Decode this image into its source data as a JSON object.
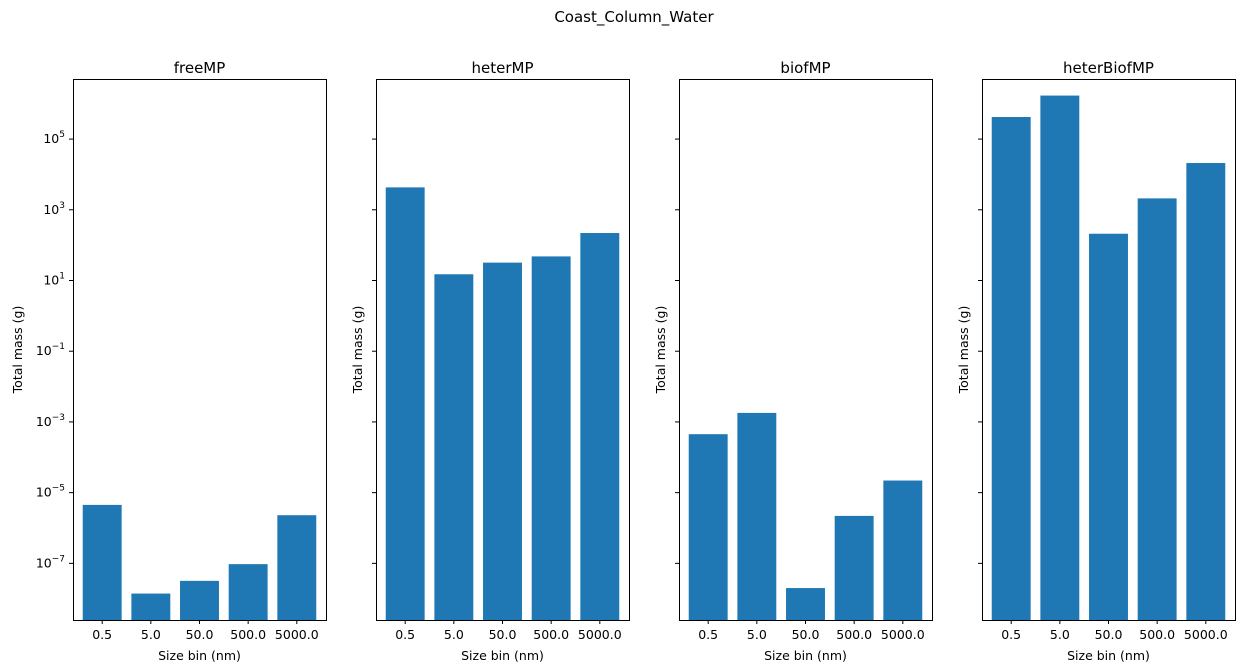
{
  "chart_data": {
    "suptitle": "Coast_Column_Water",
    "type": "bar",
    "yscale": "log",
    "ylim": [
      2.5e-09,
      5000000.0
    ],
    "sharey": true,
    "bar_color": "#1f77b4",
    "xlabel": "Size bin (nm)",
    "ylabel": "Total mass (g)",
    "categories": [
      "0.5",
      "5.0",
      "50.0",
      "500.0",
      "5000.0"
    ],
    "y_ticks": [
      {
        "value": 100000.0,
        "mantissa": "10",
        "exp": "5"
      },
      {
        "value": 1000.0,
        "mantissa": "10",
        "exp": "3"
      },
      {
        "value": 10.0,
        "mantissa": "10",
        "exp": "1"
      },
      {
        "value": 0.1,
        "mantissa": "10",
        "exp": "−1"
      },
      {
        "value": 0.001,
        "mantissa": "10",
        "exp": "−3"
      },
      {
        "value": 1e-05,
        "mantissa": "10",
        "exp": "−5"
      },
      {
        "value": 1e-07,
        "mantissa": "10",
        "exp": "−7"
      }
    ],
    "panels": [
      {
        "title": "freeMP",
        "values": [
          4.5e-06,
          1.4e-08,
          3.2e-08,
          9.5e-08,
          2.3e-06
        ]
      },
      {
        "title": "heterMP",
        "values": [
          4300,
          15,
          32,
          48,
          220
        ]
      },
      {
        "title": "biofMP",
        "values": [
          0.00045,
          0.0018,
          2e-08,
          2.2e-06,
          2.2e-05
        ]
      },
      {
        "title": "heterBiofMP",
        "values": [
          420000.0,
          1700000.0,
          210,
          2100,
          21000
        ]
      }
    ]
  }
}
